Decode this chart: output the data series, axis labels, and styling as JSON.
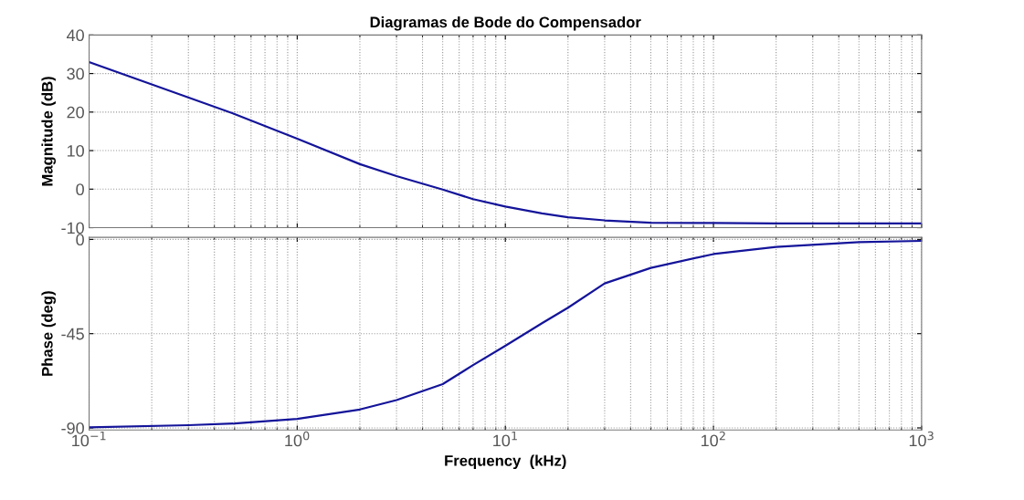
{
  "chart_data": [
    {
      "type": "line",
      "title": "Diagramas de Bode do Compensador",
      "ylabel": "Magnitude (dB)",
      "log": "x",
      "grid": true,
      "tick_labels": "y",
      "x": [
        0.1,
        0.2,
        0.5,
        1,
        2,
        3,
        5,
        7,
        10,
        15,
        20,
        30,
        50,
        100,
        200,
        500,
        1000
      ],
      "series": [
        {
          "color": "#14149a",
          "values": [
            33,
            27.2,
            19.5,
            13.1,
            6.5,
            3.4,
            -0.1,
            -2.6,
            -4.5,
            -6.3,
            -7.3,
            -8.1,
            -8.7,
            -8.8,
            -8.9,
            -8.9,
            -8.9
          ]
        }
      ],
      "xlim": [
        0.1,
        1000
      ],
      "ylim": [
        -10,
        40
      ],
      "yticks": [
        -10,
        0,
        10,
        20,
        30,
        40
      ],
      "xticks": [
        {
          "value": 0.1,
          "label": null
        },
        {
          "value": 1,
          "label": null
        },
        {
          "value": 10,
          "label": null
        },
        {
          "value": 100,
          "label": null
        },
        {
          "value": 1000,
          "label": null
        }
      ]
    },
    {
      "type": "line",
      "xlabel": "Frequency  (kHz)",
      "ylabel": "Phase (deg)",
      "log": "x",
      "grid": true,
      "x": [
        0.1,
        0.3,
        0.5,
        1,
        2,
        3,
        5,
        7,
        10,
        15,
        20,
        30,
        50,
        100,
        200,
        500,
        1000
      ],
      "series": [
        {
          "color": "#14149a",
          "values": [
            -89.7,
            -88.7,
            -87.9,
            -85.7,
            -81.2,
            -76.7,
            -69.1,
            -60,
            -50.8,
            -40,
            -32.6,
            -21,
            -13.6,
            -7,
            -3.6,
            -1.3,
            -0.7
          ]
        }
      ],
      "xlim": [
        0.1,
        1000
      ],
      "ylim": [
        -91,
        1
      ],
      "yticks": [
        -90,
        -45,
        0
      ],
      "xticks": [
        {
          "value": 0.1,
          "label": "10$^{−1}$"
        },
        {
          "value": 1,
          "label": "10$^{0}$"
        },
        {
          "value": 10,
          "label": "10$^{1}$"
        },
        {
          "value": 100,
          "label": "10$^{2}$"
        },
        {
          "value": 1000,
          "label": "10$^{3}$"
        }
      ]
    }
  ]
}
